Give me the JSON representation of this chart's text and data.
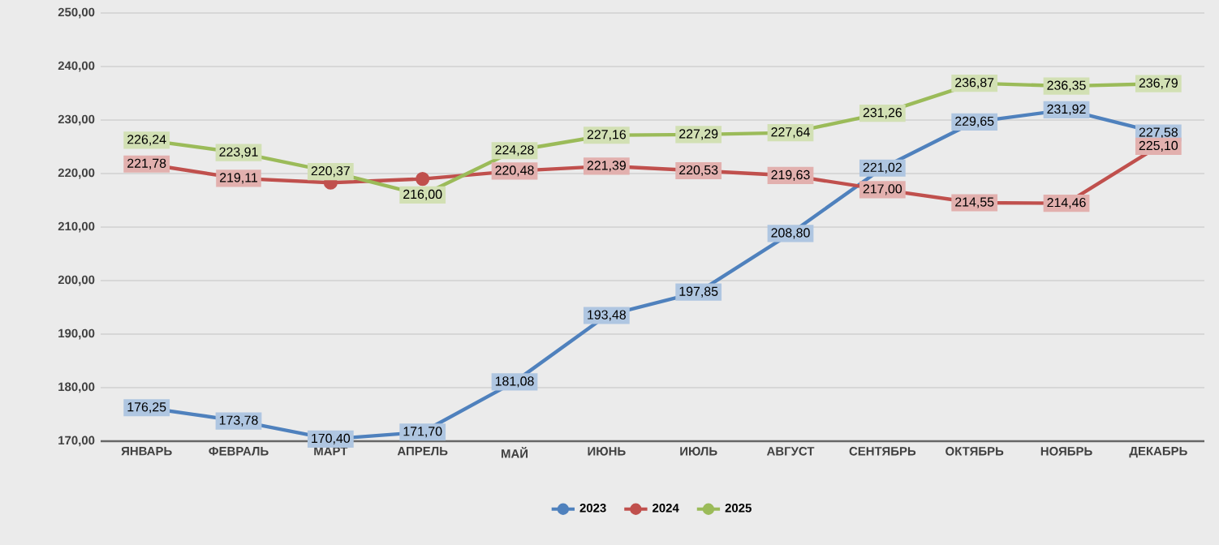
{
  "chart_data": {
    "type": "line",
    "categories": [
      "ЯНВАРЬ",
      "ФЕВРАЛЬ",
      "МАРТ",
      "АПРЕЛЬ",
      "МАЙ",
      "ИЮНЬ",
      "ИЮЛЬ",
      "АВГУСТ",
      "СЕНТЯБРЬ",
      "ОКТЯБРЬ",
      "НОЯБРЬ",
      "ДЕКАБРЬ"
    ],
    "series": [
      {
        "name": "2023",
        "color": "#4f81bd",
        "values": [
          176.25,
          173.78,
          170.4,
          171.7,
          181.08,
          193.48,
          197.85,
          208.8,
          221.02,
          229.65,
          231.92,
          227.58
        ],
        "value_labels": [
          "176,25",
          "173,78",
          "170,40",
          "171,70",
          "181,08",
          "193,48",
          "197,85",
          "208,80",
          "221,02",
          "229,65",
          "231,92",
          "227,58"
        ]
      },
      {
        "name": "2024",
        "color": "#c0504d",
        "values": [
          221.78,
          219.11,
          218.3,
          219.0,
          220.48,
          221.39,
          220.53,
          219.63,
          217.0,
          214.55,
          214.46,
          225.1
        ],
        "value_labels": [
          "221,78",
          "219,11",
          null,
          null,
          "220,48",
          "221,39",
          "220,53",
          "219,63",
          "217,00",
          "214,55",
          "214,46",
          "225,10"
        ]
      },
      {
        "name": "2025",
        "color": "#9bbb59",
        "values": [
          226.24,
          223.91,
          220.37,
          216.0,
          224.28,
          227.16,
          227.29,
          227.64,
          231.26,
          236.87,
          236.35,
          236.79
        ],
        "value_labels": [
          "226,24",
          "223,91",
          "220,37",
          "216,00",
          "224,28",
          "227,16",
          "227,29",
          "227,64",
          "231,26",
          "236,87",
          "236,35",
          "236,79"
        ]
      }
    ],
    "ylim": [
      170,
      250
    ],
    "yticks": [
      {
        "value": 170,
        "label": "170,00"
      },
      {
        "value": 180,
        "label": "180,00"
      },
      {
        "value": 190,
        "label": "190,00"
      },
      {
        "value": 200,
        "label": "200,00"
      },
      {
        "value": 210,
        "label": "210,00"
      },
      {
        "value": 220,
        "label": "220,00"
      },
      {
        "value": 230,
        "label": "230,00"
      },
      {
        "value": 240,
        "label": "240,00"
      },
      {
        "value": 250,
        "label": "250,00"
      }
    ],
    "grid": "y",
    "legend": "bottom",
    "marker": "circle",
    "line_style": "solid"
  }
}
